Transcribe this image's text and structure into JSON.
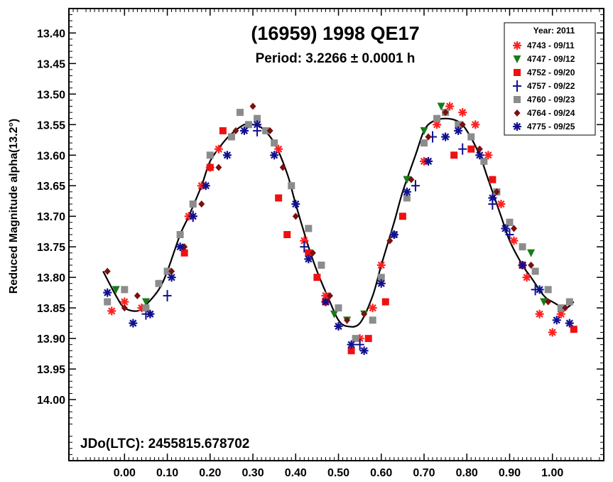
{
  "chart_data": {
    "type": "scatter",
    "title": "(16959) 1998 QE17",
    "subtitle": "Period: 3.2266 ± 0.0001 h",
    "annotation": "JDo(LTC): 2455815.678702",
    "ylabel": "Reduced Magnitude alpha(13.2°)",
    "xlabel": "",
    "xlim": [
      -0.13,
      1.12
    ],
    "ylim": [
      13.36,
      14.1
    ],
    "y_inverted": true,
    "x_ticks": [
      0.0,
      0.1,
      0.2,
      0.3,
      0.4,
      0.5,
      0.6,
      0.7,
      0.8,
      0.9,
      1.0
    ],
    "x_tick_labels": [
      "0.00",
      "0.10",
      "0.20",
      "0.30",
      "0.40",
      "0.50",
      "0.60",
      "0.70",
      "0.80",
      "0.90",
      "1.00"
    ],
    "y_ticks": [
      13.4,
      13.45,
      13.5,
      13.55,
      13.6,
      13.65,
      13.7,
      13.75,
      13.8,
      13.85,
      13.9,
      13.95,
      14.0
    ],
    "y_tick_labels": [
      "13.40",
      "13.45",
      "13.50",
      "13.55",
      "13.60",
      "13.65",
      "13.70",
      "13.75",
      "13.80",
      "13.85",
      "13.90",
      "13.95",
      "14.00"
    ],
    "grid": false,
    "legend": {
      "title": "Year: 2011",
      "placement": "top-right",
      "entries": [
        {
          "label": "4743 - 09/11",
          "color": "#ff2020",
          "marker": "asterisk"
        },
        {
          "label": "4747 - 09/12",
          "color": "#1a7a1a",
          "marker": "triangle-down"
        },
        {
          "label": "4752 - 09/20",
          "color": "#ee1111",
          "marker": "square"
        },
        {
          "label": "4757 - 09/22",
          "color": "#101090",
          "marker": "plus"
        },
        {
          "label": "4760 - 09/23",
          "color": "#8c8c8c",
          "marker": "square"
        },
        {
          "label": "4764 - 09/24",
          "color": "#7a1010",
          "marker": "diamond"
        },
        {
          "label": "4775 - 09/25",
          "color": "#101090",
          "marker": "asterisk"
        }
      ]
    },
    "fit_curve": {
      "x": [
        -0.05,
        -0.02,
        0.0,
        0.03,
        0.05,
        0.08,
        0.1,
        0.13,
        0.15,
        0.18,
        0.2,
        0.23,
        0.25,
        0.28,
        0.3,
        0.32,
        0.35,
        0.38,
        0.4,
        0.43,
        0.45,
        0.48,
        0.5,
        0.52,
        0.55,
        0.58,
        0.6,
        0.63,
        0.65,
        0.68,
        0.7,
        0.72,
        0.75,
        0.78,
        0.8,
        0.83,
        0.85,
        0.88,
        0.9,
        0.93,
        0.95,
        0.98,
        1.0,
        1.03,
        1.05
      ],
      "y": [
        13.79,
        13.83,
        13.85,
        13.855,
        13.845,
        13.82,
        13.79,
        13.73,
        13.7,
        13.65,
        13.61,
        13.58,
        13.565,
        13.55,
        13.55,
        13.555,
        13.58,
        13.63,
        13.68,
        13.75,
        13.79,
        13.84,
        13.87,
        13.88,
        13.875,
        13.83,
        13.78,
        13.71,
        13.66,
        13.6,
        13.56,
        13.545,
        13.54,
        13.545,
        13.56,
        13.6,
        13.64,
        13.7,
        13.74,
        13.78,
        13.8,
        13.83,
        13.84,
        13.85,
        13.84
      ]
    },
    "series": [
      {
        "name": "4743 - 09/11",
        "marker": "asterisk",
        "color": "#ff2020",
        "x": [
          -0.03,
          0.0,
          0.04,
          0.15,
          0.18,
          0.2,
          0.22,
          0.36,
          0.42,
          0.47,
          0.5,
          0.55,
          0.58,
          0.6,
          0.7,
          0.73,
          0.76,
          0.79,
          0.82,
          0.85,
          0.88,
          0.91,
          0.94,
          0.97,
          1.0,
          1.02
        ],
        "y": [
          13.855,
          13.84,
          13.85,
          13.7,
          13.65,
          13.62,
          13.59,
          13.59,
          13.74,
          13.83,
          13.88,
          13.9,
          13.85,
          13.78,
          13.61,
          13.55,
          13.52,
          13.53,
          13.55,
          13.6,
          13.68,
          13.74,
          13.8,
          13.86,
          13.89,
          13.86
        ]
      },
      {
        "name": "4747 - 09/12",
        "marker": "triangle-down",
        "color": "#1a7a1a",
        "x": [
          -0.02,
          0.05,
          0.49,
          0.52,
          0.56,
          0.66,
          0.7,
          0.74,
          0.95,
          0.98
        ],
        "y": [
          13.82,
          13.84,
          13.86,
          13.87,
          13.86,
          13.64,
          13.56,
          13.52,
          13.76,
          13.84
        ]
      },
      {
        "name": "4752 - 09/20",
        "marker": "square",
        "color": "#ee1111",
        "x": [
          0.14,
          0.2,
          0.23,
          0.36,
          0.38,
          0.43,
          0.45,
          0.47,
          0.53,
          0.57,
          0.61,
          0.65,
          0.77,
          0.81,
          0.86,
          0.9,
          0.93,
          1.05
        ],
        "y": [
          13.76,
          13.62,
          13.56,
          13.67,
          13.73,
          13.76,
          13.8,
          13.84,
          13.92,
          13.9,
          13.84,
          13.7,
          13.6,
          13.59,
          13.64,
          13.71,
          13.78,
          13.885
        ]
      },
      {
        "name": "4757 - 09/22",
        "marker": "plus",
        "color": "#101090",
        "x": [
          0.05,
          0.1,
          0.16,
          0.31,
          0.42,
          0.55,
          0.68,
          0.72,
          0.79,
          0.86,
          0.9,
          0.96
        ],
        "y": [
          13.86,
          13.83,
          13.7,
          13.56,
          13.75,
          13.91,
          13.65,
          13.57,
          13.59,
          13.68,
          13.73,
          13.82
        ]
      },
      {
        "name": "4760 - 09/23",
        "marker": "square",
        "color": "#8c8c8c",
        "x": [
          -0.04,
          0.0,
          0.05,
          0.08,
          0.1,
          0.13,
          0.16,
          0.2,
          0.25,
          0.27,
          0.29,
          0.31,
          0.33,
          0.35,
          0.39,
          0.43,
          0.46,
          0.5,
          0.54,
          0.58,
          0.6,
          0.63,
          0.66,
          0.7,
          0.73,
          0.75,
          0.78,
          0.81,
          0.84,
          0.87,
          0.9,
          0.93,
          0.96,
          0.99,
          1.02,
          1.04
        ],
        "y": [
          13.84,
          13.82,
          13.85,
          13.81,
          13.79,
          13.73,
          13.68,
          13.6,
          13.57,
          13.53,
          13.55,
          13.54,
          13.56,
          13.58,
          13.65,
          13.72,
          13.78,
          13.85,
          13.9,
          13.87,
          13.8,
          13.73,
          13.67,
          13.58,
          13.54,
          13.53,
          13.55,
          13.57,
          13.61,
          13.66,
          13.71,
          13.75,
          13.79,
          13.82,
          13.85,
          13.84
        ]
      },
      {
        "name": "4764 - 09/24",
        "marker": "diamond",
        "color": "#7a1010",
        "x": [
          -0.04,
          0.0,
          0.03,
          0.06,
          0.11,
          0.14,
          0.18,
          0.22,
          0.26,
          0.3,
          0.34,
          0.37,
          0.4,
          0.44,
          0.48,
          0.52,
          0.56,
          0.62,
          0.67,
          0.71,
          0.75,
          0.79,
          0.83,
          0.87,
          0.91,
          0.95,
          0.99,
          1.03
        ],
        "y": [
          13.79,
          13.85,
          13.83,
          13.86,
          13.79,
          13.75,
          13.68,
          13.62,
          13.56,
          13.52,
          13.56,
          13.62,
          13.7,
          13.76,
          13.83,
          13.87,
          13.86,
          13.74,
          13.64,
          13.57,
          13.53,
          13.55,
          13.59,
          13.66,
          13.72,
          13.78,
          13.84,
          13.85
        ]
      },
      {
        "name": "4775 - 09/25",
        "marker": "asterisk",
        "color": "#101090",
        "x": [
          -0.04,
          0.02,
          0.06,
          0.11,
          0.13,
          0.16,
          0.19,
          0.24,
          0.28,
          0.31,
          0.35,
          0.4,
          0.43,
          0.47,
          0.5,
          0.53,
          0.56,
          0.6,
          0.63,
          0.66,
          0.71,
          0.75,
          0.78,
          0.83,
          0.86,
          0.89,
          0.93,
          0.97,
          1.01,
          1.04
        ],
        "y": [
          13.825,
          13.875,
          13.86,
          13.8,
          13.75,
          13.7,
          13.65,
          13.6,
          13.56,
          13.55,
          13.6,
          13.68,
          13.77,
          13.84,
          13.88,
          13.91,
          13.92,
          13.81,
          13.73,
          13.66,
          13.61,
          13.57,
          13.56,
          13.6,
          13.67,
          13.72,
          13.78,
          13.82,
          13.87,
          13.875
        ]
      }
    ]
  }
}
